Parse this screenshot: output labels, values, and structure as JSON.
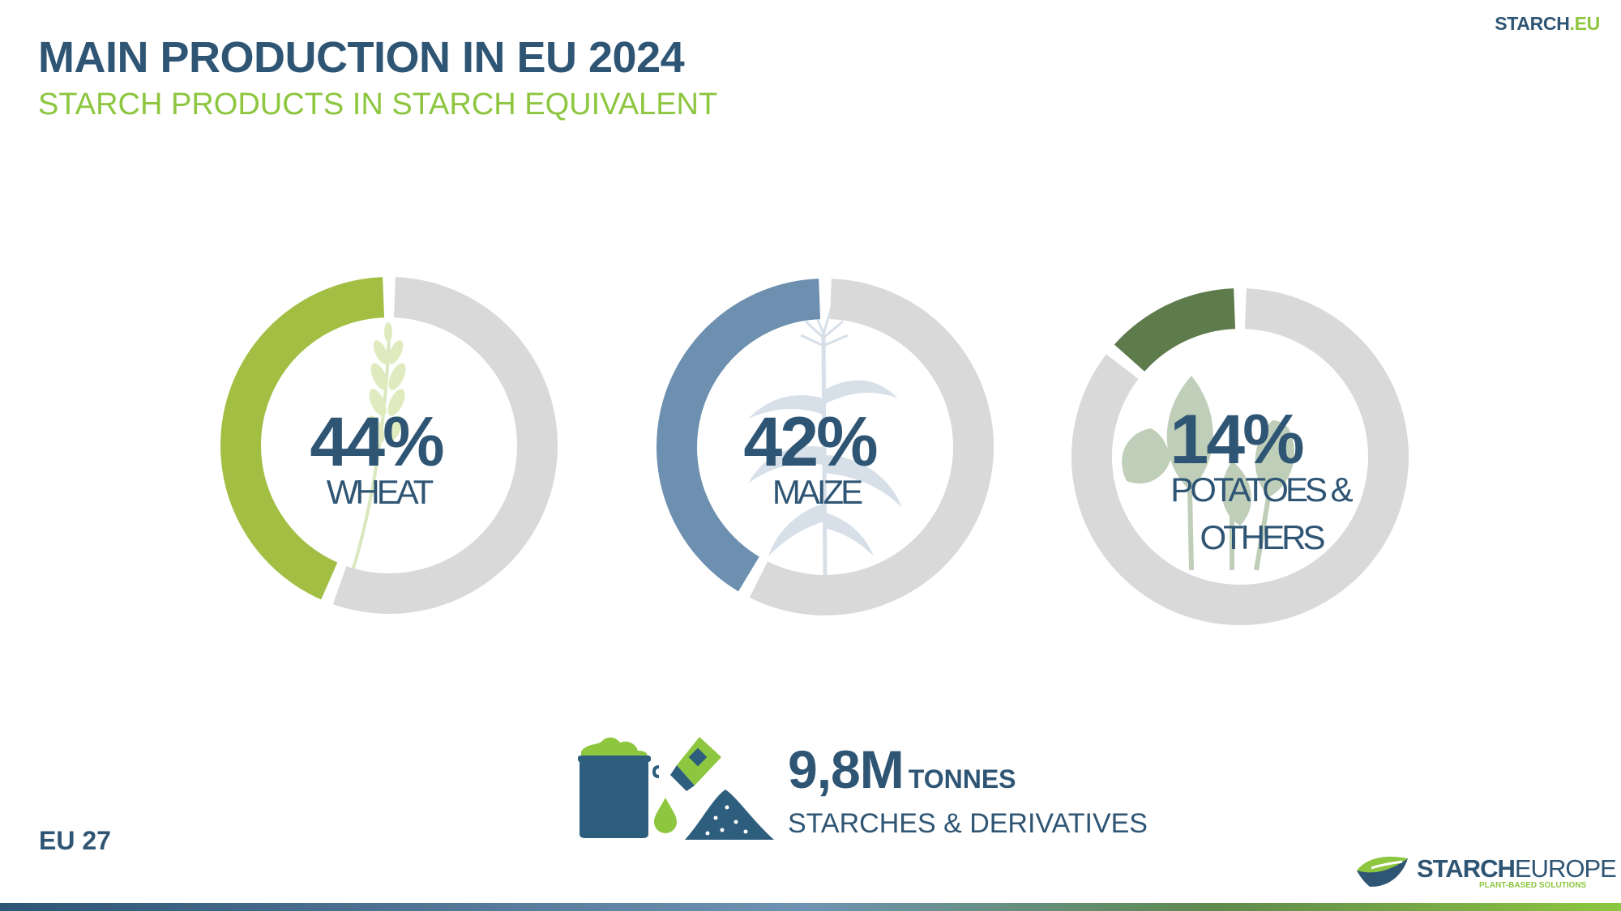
{
  "header": {
    "title": "MAIN PRODUCTION IN EU 2024",
    "subtitle": "STARCH PRODUCTS IN STARCH EQUIVALENT",
    "site_name": "STARCH",
    "site_ext": ".EU"
  },
  "chart_data": [
    {
      "type": "pie",
      "style": "donut",
      "slices": [
        {
          "label": "WHEAT",
          "value": 44,
          "display": "44%",
          "color": "#a2bf44"
        },
        {
          "label": "",
          "value": 56,
          "color": "#d9d9d9"
        }
      ],
      "center_text": "44%",
      "center_label": [
        "WHEAT"
      ],
      "icon": "wheat-icon"
    },
    {
      "type": "pie",
      "style": "donut",
      "slices": [
        {
          "label": "MAIZE",
          "value": 42,
          "display": "42%",
          "color": "#6d8fb0"
        },
        {
          "label": "",
          "value": 58,
          "color": "#d9d9d9"
        }
      ],
      "center_text": "42%",
      "center_label": [
        "MAIZE"
      ],
      "icon": "maize-icon"
    },
    {
      "type": "pie",
      "style": "donut",
      "slices": [
        {
          "label": "POTATOES & OTHERS",
          "value": 14,
          "display": "14%",
          "color": "#5e7b4c"
        },
        {
          "label": "",
          "value": 86,
          "color": "#d9d9d9"
        }
      ],
      "center_text": "14%",
      "center_label": [
        "POTATOES &",
        "OTHERS"
      ],
      "icon": "potato-plant-icon"
    }
  ],
  "summary": {
    "total_value": "9,8M",
    "total_unit": "TONNES",
    "description": "STARCHES & DERIVATIVES",
    "icons": [
      "starch-sack-icon",
      "squeeze-bottle-icon",
      "drop-icon",
      "powder-pile-icon"
    ]
  },
  "footer": {
    "region": "EU 27",
    "brand_bold": "STARCH",
    "brand_thin": "EUROPE",
    "brand_tagline": "PLANT-BASED SOLUTIONS",
    "brand_icon": "starch-europe-logo-icon"
  },
  "colors": {
    "navy": "#2f5574",
    "green": "#8dc63f",
    "track": "#d9d9d9"
  }
}
